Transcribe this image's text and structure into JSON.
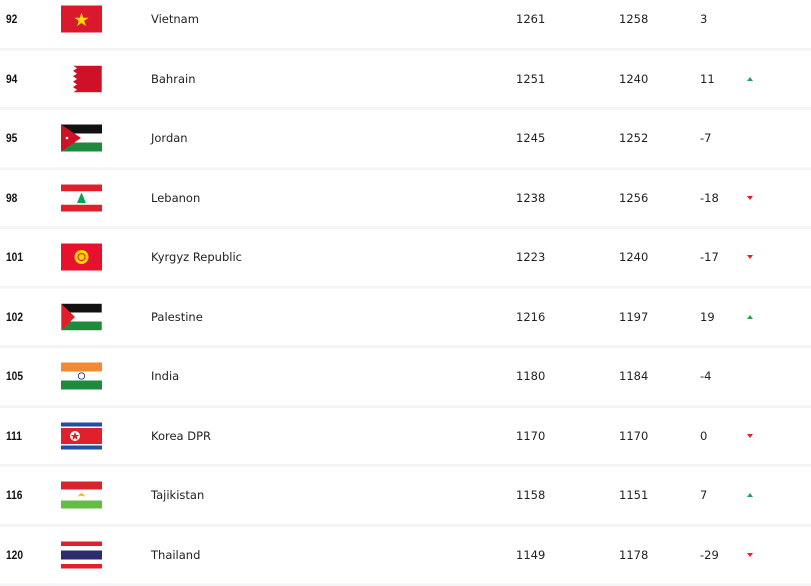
{
  "rows": [
    {
      "rank": "92",
      "flag": "vietnam-flag",
      "name": "Vietnam",
      "total": "1261",
      "previous": "1258",
      "change": "3",
      "trend": ""
    },
    {
      "rank": "94",
      "flag": "bahrain-flag",
      "name": "Bahrain",
      "total": "1251",
      "previous": "1240",
      "change": "11",
      "trend": "up"
    },
    {
      "rank": "95",
      "flag": "jordan-flag",
      "name": "Jordan",
      "total": "1245",
      "previous": "1252",
      "change": "-7",
      "trend": ""
    },
    {
      "rank": "98",
      "flag": "lebanon-flag",
      "name": "Lebanon",
      "total": "1238",
      "previous": "1256",
      "change": "-18",
      "trend": "down"
    },
    {
      "rank": "101",
      "flag": "kyrgyz-republic-flag",
      "name": "Kyrgyz Republic",
      "total": "1223",
      "previous": "1240",
      "change": "-17",
      "trend": "down"
    },
    {
      "rank": "102",
      "flag": "palestine-flag",
      "name": "Palestine",
      "total": "1216",
      "previous": "1197",
      "change": "19",
      "trend": "up"
    },
    {
      "rank": "105",
      "flag": "india-flag",
      "name": "India",
      "total": "1180",
      "previous": "1184",
      "change": "-4",
      "trend": ""
    },
    {
      "rank": "111",
      "flag": "korea-dpr-flag",
      "name": "Korea DPR",
      "total": "1170",
      "previous": "1170",
      "change": "0",
      "trend": "down"
    },
    {
      "rank": "116",
      "flag": "tajikistan-flag",
      "name": "Tajikistan",
      "total": "1158",
      "previous": "1151",
      "change": "7",
      "trend": "up"
    },
    {
      "rank": "120",
      "flag": "thailand-flag",
      "name": "Thailand",
      "total": "1149",
      "previous": "1178",
      "change": "-29",
      "trend": "down"
    }
  ],
  "colors": {
    "up": "#1fa750",
    "down": "#e0202c",
    "divider": "#f3f5f9"
  }
}
